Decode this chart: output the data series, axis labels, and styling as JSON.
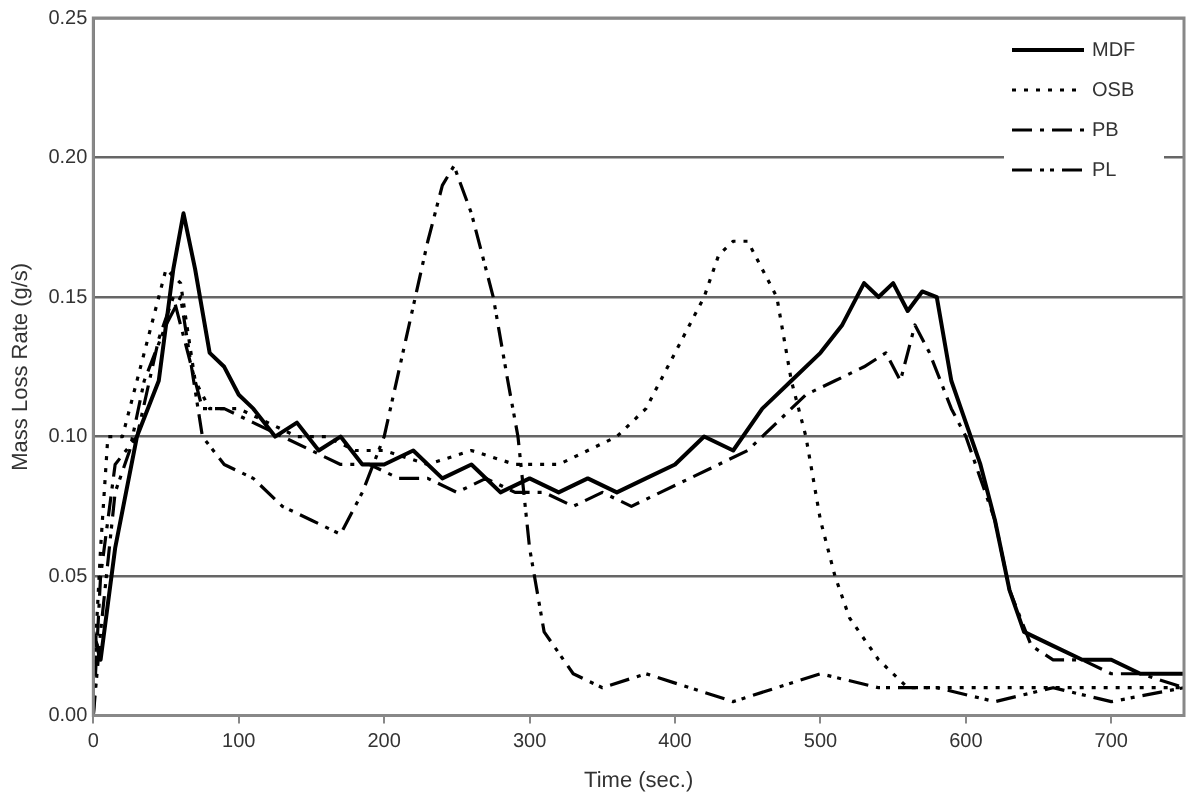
{
  "chart_data": {
    "type": "line",
    "xlabel": "Time (sec.)",
    "ylabel": "Mass Loss Rate (g/s)",
    "xlim": [
      0,
      750
    ],
    "xticks": [
      0,
      100,
      200,
      300,
      400,
      500,
      600,
      700
    ],
    "ylim": [
      0,
      0.25
    ],
    "yticks": [
      {
        "value": 0,
        "label": "0.00"
      },
      {
        "value": 0.05,
        "label": "0.05"
      },
      {
        "value": 0.1,
        "label": "0.10"
      },
      {
        "value": 0.15,
        "label": "0.15"
      },
      {
        "value": 0.2,
        "label": "0.20"
      },
      {
        "value": 0.25,
        "label": "0.25"
      }
    ],
    "grid": "y",
    "legend": "top right",
    "marker": "none",
    "series": [
      {
        "name": "MDF",
        "color": "#000000",
        "line_style": "solid",
        "x": [
          0,
          5,
          15,
          30,
          45,
          55,
          62,
          70,
          80,
          90,
          100,
          110,
          125,
          140,
          155,
          170,
          185,
          200,
          220,
          240,
          260,
          280,
          300,
          320,
          340,
          360,
          380,
          400,
          420,
          440,
          460,
          480,
          500,
          515,
          530,
          540,
          550,
          560,
          570,
          580,
          590,
          600,
          610,
          620,
          630,
          640,
          660,
          680,
          700,
          720,
          750
        ],
        "values": [
          0.03,
          0.02,
          0.06,
          0.1,
          0.12,
          0.16,
          0.18,
          0.16,
          0.13,
          0.125,
          0.115,
          0.11,
          0.1,
          0.105,
          0.095,
          0.1,
          0.09,
          0.09,
          0.095,
          0.085,
          0.09,
          0.08,
          0.085,
          0.08,
          0.085,
          0.08,
          0.085,
          0.09,
          0.1,
          0.095,
          0.11,
          0.12,
          0.13,
          0.14,
          0.155,
          0.15,
          0.155,
          0.145,
          0.152,
          0.15,
          0.12,
          0.105,
          0.09,
          0.07,
          0.045,
          0.03,
          0.025,
          0.02,
          0.02,
          0.015,
          0.015
        ]
      },
      {
        "name": "OSB",
        "color": "#000000",
        "line_style": "dotted",
        "x": [
          0,
          5,
          10,
          20,
          35,
          50,
          60,
          70,
          80,
          100,
          120,
          140,
          160,
          180,
          200,
          230,
          260,
          290,
          320,
          340,
          360,
          380,
          400,
          420,
          430,
          440,
          450,
          460,
          470,
          480,
          490,
          500,
          510,
          520,
          540,
          560,
          600,
          650,
          700,
          750
        ],
        "values": [
          0.01,
          0.06,
          0.1,
          0.1,
          0.13,
          0.16,
          0.155,
          0.12,
          0.11,
          0.11,
          0.105,
          0.1,
          0.1,
          0.095,
          0.095,
          0.09,
          0.095,
          0.09,
          0.09,
          0.095,
          0.1,
          0.11,
          0.13,
          0.15,
          0.165,
          0.17,
          0.17,
          0.16,
          0.15,
          0.12,
          0.1,
          0.07,
          0.05,
          0.035,
          0.02,
          0.01,
          0.01,
          0.01,
          0.01,
          0.01
        ]
      },
      {
        "name": "PB",
        "color": "#000000",
        "line_style": "dashed",
        "x": [
          0,
          5,
          15,
          30,
          45,
          55,
          65,
          75,
          90,
          110,
          130,
          150,
          170,
          190,
          210,
          230,
          250,
          270,
          290,
          310,
          330,
          350,
          370,
          390,
          410,
          430,
          450,
          470,
          490,
          510,
          530,
          545,
          555,
          565,
          575,
          590,
          600,
          610,
          620,
          630,
          645,
          660,
          680,
          700,
          720,
          750
        ],
        "values": [
          0.0,
          0.05,
          0.09,
          0.1,
          0.135,
          0.15,
          0.13,
          0.11,
          0.11,
          0.105,
          0.1,
          0.095,
          0.09,
          0.09,
          0.085,
          0.085,
          0.08,
          0.085,
          0.08,
          0.08,
          0.075,
          0.08,
          0.075,
          0.08,
          0.085,
          0.09,
          0.095,
          0.105,
          0.115,
          0.12,
          0.125,
          0.13,
          0.12,
          0.14,
          0.13,
          0.11,
          0.1,
          0.085,
          0.07,
          0.045,
          0.025,
          0.02,
          0.02,
          0.015,
          0.015,
          0.01
        ]
      },
      {
        "name": "PL",
        "color": "#000000",
        "line_style": "dashdot",
        "x": [
          0,
          5,
          15,
          25,
          35,
          50,
          60,
          75,
          90,
          110,
          130,
          150,
          170,
          185,
          200,
          215,
          230,
          240,
          248,
          260,
          275,
          285,
          292,
          300,
          310,
          330,
          350,
          380,
          410,
          440,
          470,
          500,
          540,
          580,
          620,
          660,
          700,
          750
        ],
        "values": [
          0.0,
          0.03,
          0.08,
          0.095,
          0.12,
          0.14,
          0.15,
          0.1,
          0.09,
          0.085,
          0.075,
          0.07,
          0.065,
          0.08,
          0.1,
          0.135,
          0.17,
          0.19,
          0.197,
          0.18,
          0.15,
          0.12,
          0.1,
          0.06,
          0.03,
          0.015,
          0.01,
          0.015,
          0.01,
          0.005,
          0.01,
          0.015,
          0.01,
          0.01,
          0.005,
          0.01,
          0.005,
          0.01
        ]
      }
    ]
  }
}
